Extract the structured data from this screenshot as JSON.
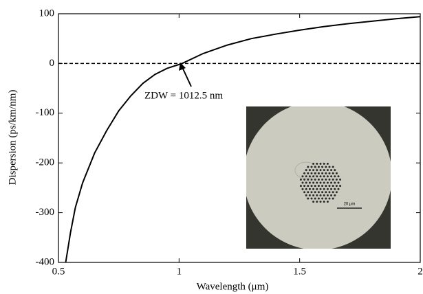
{
  "chart_data": {
    "type": "line",
    "x_label": "Wavelength (μm)",
    "y_label": "Dispersion (ps/km/nm)",
    "x": [
      0.53,
      0.55,
      0.57,
      0.6,
      0.65,
      0.7,
      0.75,
      0.8,
      0.85,
      0.9,
      0.95,
      1.0125,
      1.1,
      1.2,
      1.3,
      1.4,
      1.5,
      1.6,
      1.7,
      1.8,
      1.9,
      2.0
    ],
    "values": [
      -400,
      -340,
      -290,
      -240,
      -180,
      -135,
      -95,
      -65,
      -40,
      -22,
      -10,
      0,
      20,
      37,
      50,
      59,
      67,
      74,
      80,
      85,
      90,
      94
    ],
    "color": "#000000",
    "xlim": [
      0.5,
      2
    ],
    "xticks": [
      0.5,
      1,
      1.5,
      2
    ],
    "ylim": [
      -400,
      100
    ],
    "yticks": [
      -400,
      -300,
      -200,
      -100,
      0,
      100
    ],
    "reference_line": 0,
    "annotation": "ZDW = 1012.5 nm",
    "inset_scale_label": "20 μm"
  }
}
